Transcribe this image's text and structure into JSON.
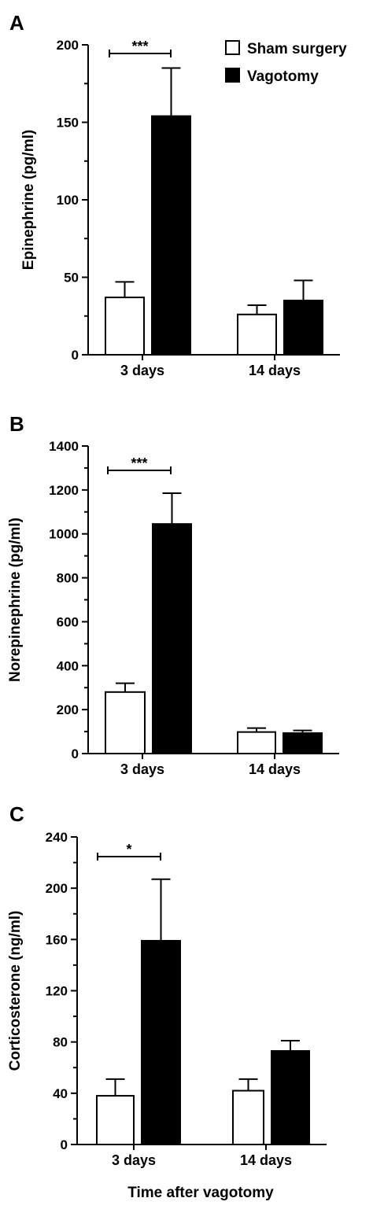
{
  "legend": [
    {
      "label": "Sham surgery",
      "color": "#ffffff"
    },
    {
      "label": "Vagotomy",
      "color": "#000000"
    }
  ],
  "xlabel": "Time after vagotomy",
  "chart_data": [
    {
      "panel": "A",
      "type": "bar",
      "categories": [
        "3 days",
        "14 days"
      ],
      "series": [
        {
          "name": "Sham surgery",
          "color": "#ffffff",
          "values": [
            37,
            26
          ],
          "errors": [
            10,
            6
          ]
        },
        {
          "name": "Vagotomy",
          "color": "#000000",
          "values": [
            154,
            35
          ],
          "errors": [
            31,
            13
          ]
        }
      ],
      "ylabel": "Epinephrine (pg/ml)",
      "ylim": [
        0,
        200
      ],
      "yticks": [
        0,
        50,
        100,
        150,
        200
      ],
      "significance": [
        {
          "label": "***",
          "category": "3 days"
        }
      ]
    },
    {
      "panel": "B",
      "type": "bar",
      "categories": [
        "3 days",
        "14 days"
      ],
      "series": [
        {
          "name": "Sham surgery",
          "color": "#ffffff",
          "values": [
            280,
            98
          ],
          "errors": [
            40,
            18
          ]
        },
        {
          "name": "Vagotomy",
          "color": "#000000",
          "values": [
            1045,
            93
          ],
          "errors": [
            140,
            12
          ]
        }
      ],
      "ylabel": "Norepinephrine (pg/ml)",
      "ylim": [
        0,
        1400
      ],
      "yticks": [
        0,
        200,
        400,
        600,
        800,
        1000,
        1200,
        1400
      ],
      "significance": [
        {
          "label": "***",
          "category": "3 days"
        }
      ]
    },
    {
      "panel": "C",
      "type": "bar",
      "categories": [
        "3 days",
        "14 days"
      ],
      "series": [
        {
          "name": "Sham surgery",
          "color": "#ffffff",
          "values": [
            38,
            42
          ],
          "errors": [
            13,
            9
          ]
        },
        {
          "name": "Vagotomy",
          "color": "#000000",
          "values": [
            159,
            73
          ],
          "errors": [
            48,
            8
          ]
        }
      ],
      "ylabel": "Corticosterone (ng/ml)",
      "ylim": [
        0,
        240
      ],
      "yticks": [
        0,
        40,
        80,
        120,
        160,
        200,
        240
      ],
      "significance": [
        {
          "label": "*",
          "category": "3 days"
        }
      ]
    }
  ]
}
